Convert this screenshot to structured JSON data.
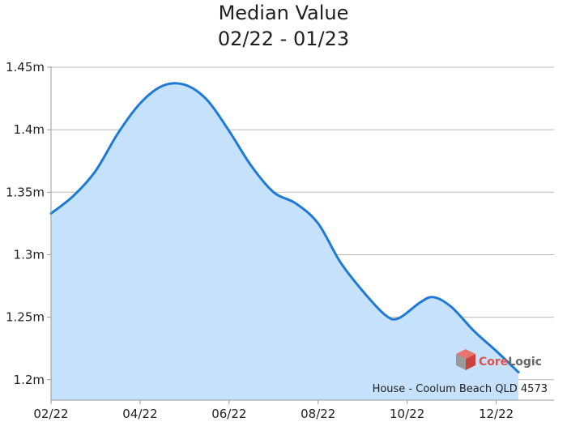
{
  "chart_data": {
    "type": "area",
    "title_line1": "Median Value",
    "title_line2": "02/22 - 01/23",
    "xlabel": "",
    "ylabel": "",
    "x_tick_labels": [
      "02/22",
      "04/22",
      "06/22",
      "08/22",
      "10/22",
      "12/22"
    ],
    "y_tick_labels": [
      "1.2m",
      "1.25m",
      "1.3m",
      "1.35m",
      "1.4m",
      "1.45m"
    ],
    "y_tick_values": [
      1.2,
      1.25,
      1.3,
      1.35,
      1.4,
      1.45
    ],
    "ylim": [
      1.183,
      1.45
    ],
    "xlim": [
      0,
      11.3
    ],
    "grid": true,
    "line_color": "#1f7ad6",
    "fill_color": "#c5e1fb",
    "points": [
      {
        "x": 0,
        "y": 1.333
      },
      {
        "x": 0.5,
        "y": 1.347
      },
      {
        "x": 1.0,
        "y": 1.367
      },
      {
        "x": 1.5,
        "y": 1.397
      },
      {
        "x": 2.0,
        "y": 1.421
      },
      {
        "x": 2.5,
        "y": 1.435
      },
      {
        "x": 3.0,
        "y": 1.436
      },
      {
        "x": 3.5,
        "y": 1.424
      },
      {
        "x": 4.0,
        "y": 1.399
      },
      {
        "x": 4.5,
        "y": 1.371
      },
      {
        "x": 5.0,
        "y": 1.35
      },
      {
        "x": 5.5,
        "y": 1.341
      },
      {
        "x": 6.0,
        "y": 1.325
      },
      {
        "x": 6.5,
        "y": 1.294
      },
      {
        "x": 7.0,
        "y": 1.271
      },
      {
        "x": 7.5,
        "y": 1.252
      },
      {
        "x": 7.8,
        "y": 1.249
      },
      {
        "x": 8.3,
        "y": 1.262
      },
      {
        "x": 8.6,
        "y": 1.266
      },
      {
        "x": 9.0,
        "y": 1.258
      },
      {
        "x": 9.5,
        "y": 1.239
      },
      {
        "x": 10.0,
        "y": 1.223
      },
      {
        "x": 10.5,
        "y": 1.206
      }
    ],
    "annotation": "House - Coolum Beach QLD 4573"
  },
  "brand": {
    "name_part1": "Core",
    "name_part2": "Logic",
    "color_part1": "#d9534f",
    "color_part2": "#666666",
    "icon": "cube-logo-icon"
  }
}
